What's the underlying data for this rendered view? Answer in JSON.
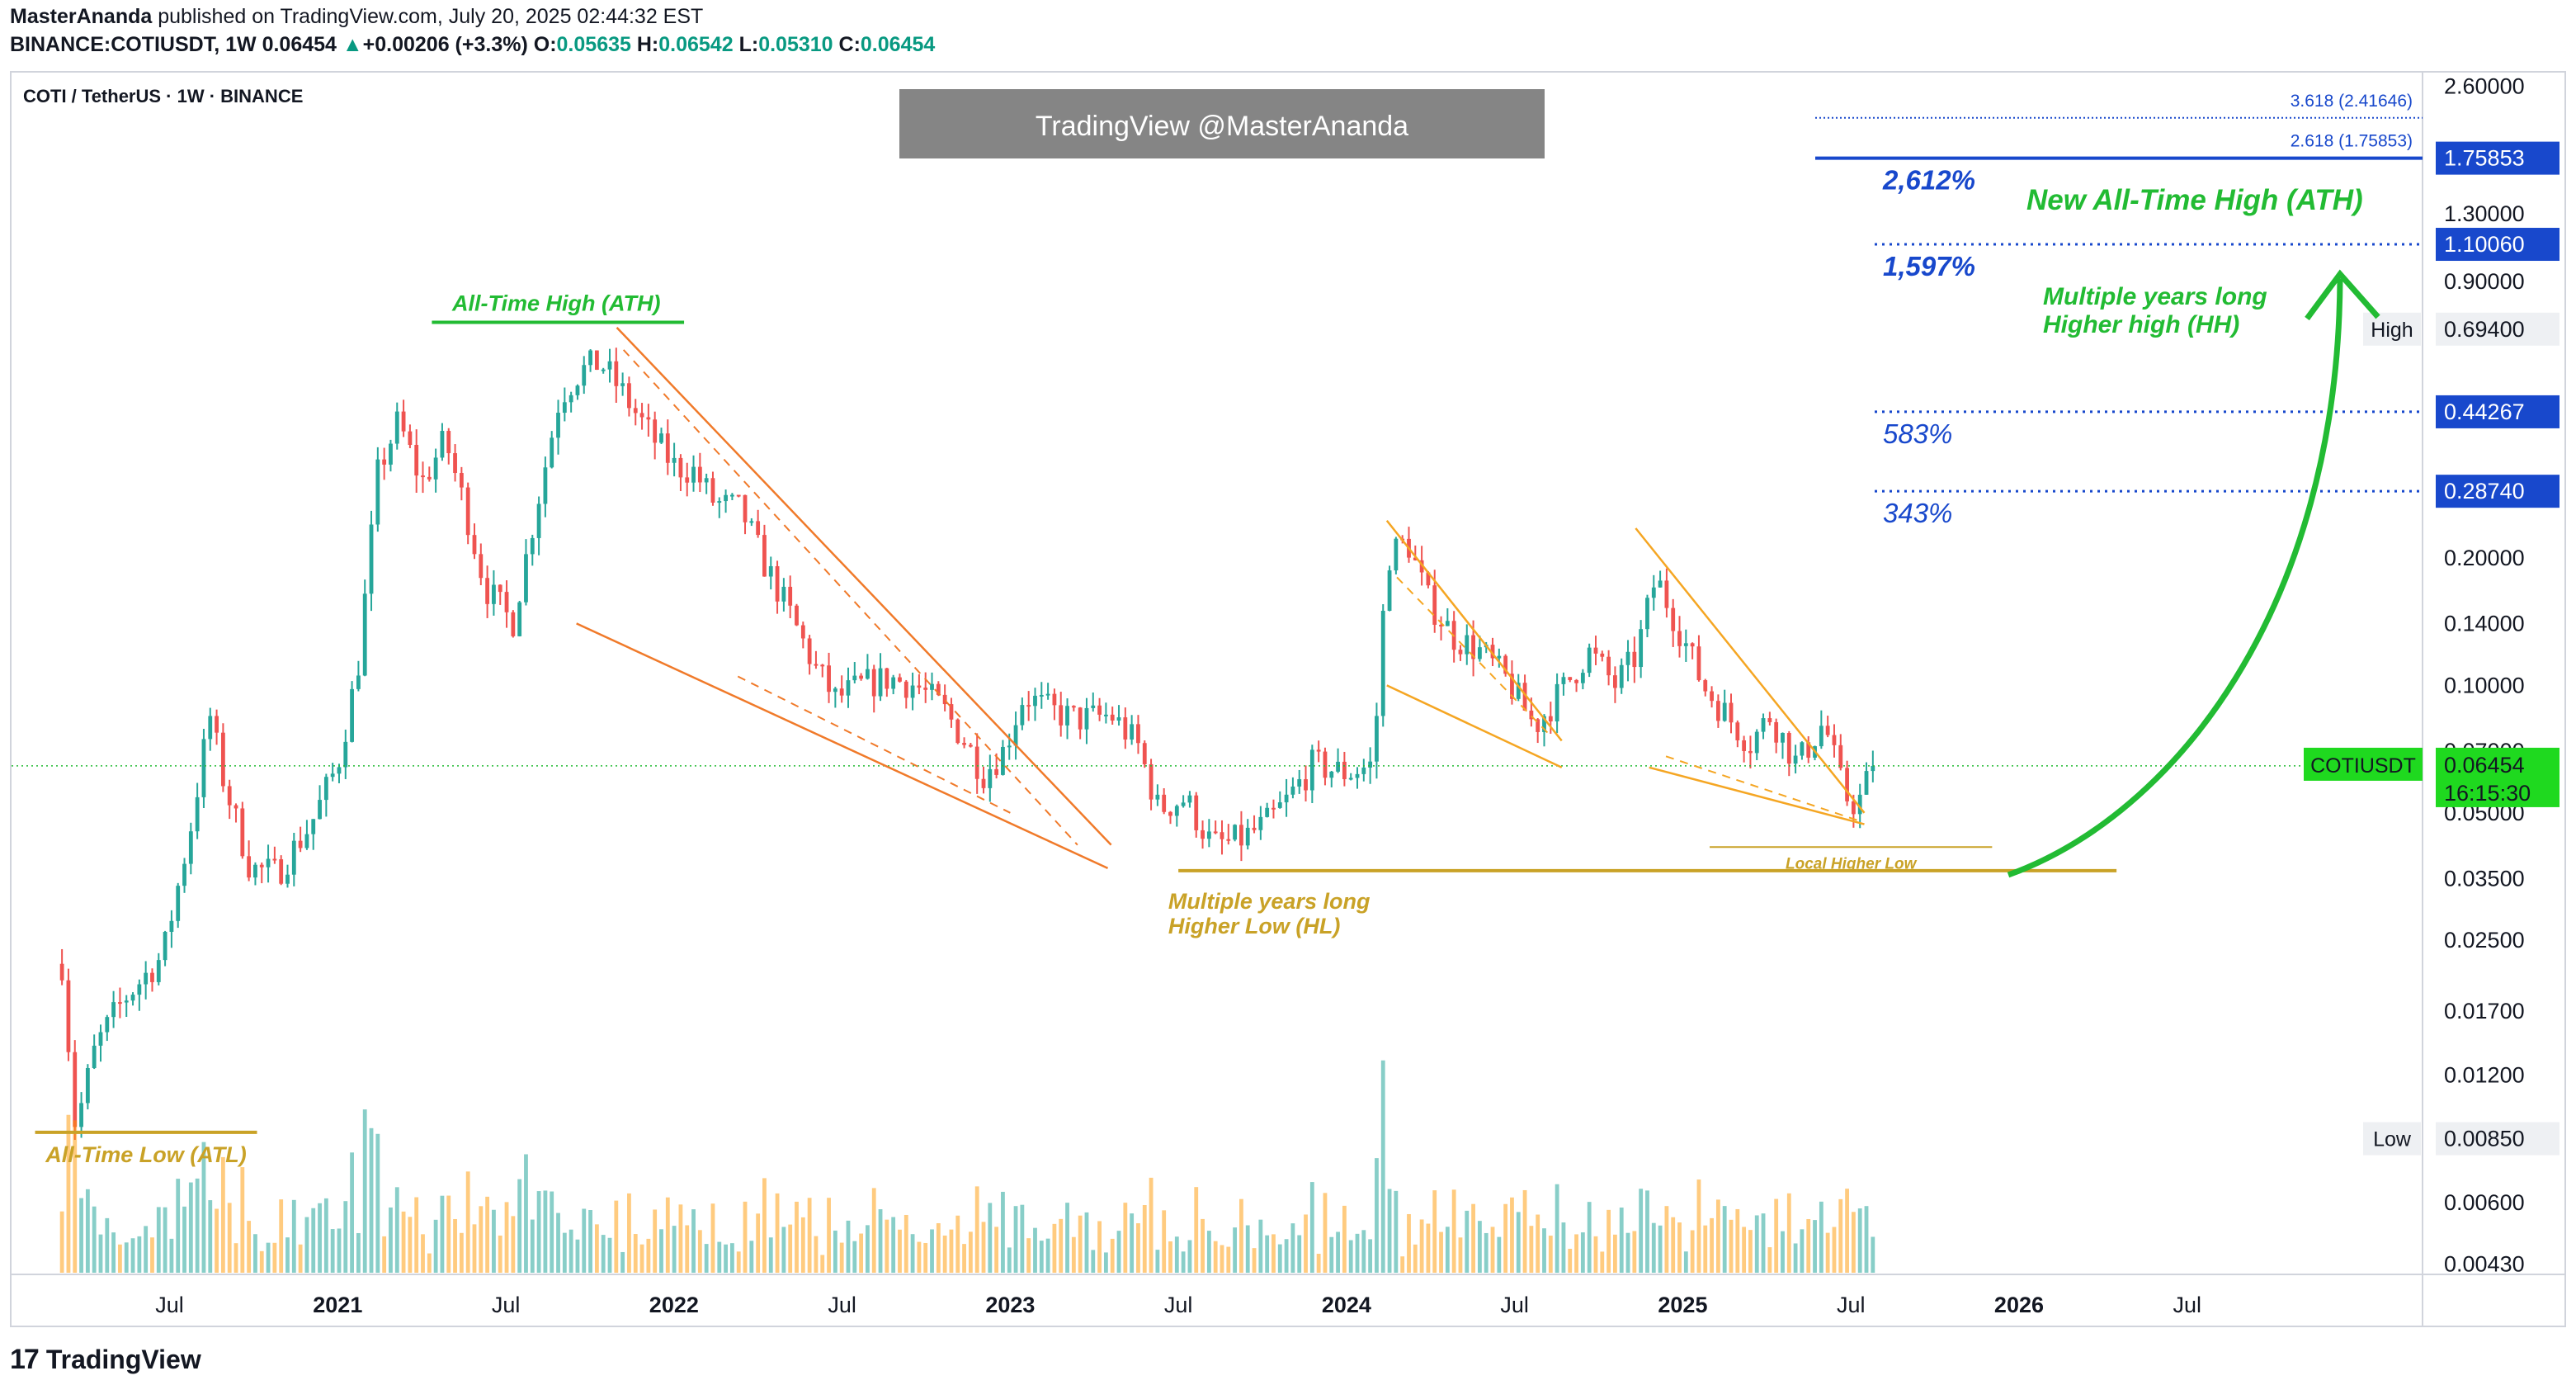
{
  "header": {
    "author": "MasterAnanda",
    "published_text": "published on TradingView.com, July 20, 2025 02:44:32 EST",
    "symbol_line": "BINANCE:COTIUSDT, 1W",
    "last": "0.06454",
    "change_arrow": "▲",
    "change": "+0.00206 (+3.3%)",
    "o_label": "O:",
    "o_value": "0.05635",
    "h_label": "H:",
    "h_value": "0.06542",
    "l_label": "L:",
    "l_value": "0.05310",
    "c_label": "C:",
    "c_value": "0.06454"
  },
  "footer": {
    "logo_glyph": "17",
    "brand": "TradingView"
  },
  "chart_data": {
    "type": "candlestick",
    "title": "COTI / TetherUS · 1W · BINANCE",
    "watermark": "TradingView @MasterAnanda",
    "scale": "log",
    "ylim": [
      0.0041,
      2.75
    ],
    "xlim": [
      2020.03,
      2027.2
    ],
    "y_ticks": [
      "2.60000",
      "1.30000",
      "0.90000",
      "0.20000",
      "0.14000",
      "0.10000",
      "0.07000",
      "0.05000",
      "0.03500",
      "0.02500",
      "0.01700",
      "0.01200",
      "0.00600",
      "0.00430"
    ],
    "y_tick_values": [
      2.6,
      1.3,
      0.9,
      0.2,
      0.14,
      0.1,
      0.07,
      0.05,
      0.035,
      0.025,
      0.017,
      0.012,
      0.006,
      0.0043
    ],
    "x_ticks": [
      {
        "label": "Jul",
        "t": 2020.5,
        "bold": false
      },
      {
        "label": "2021",
        "t": 2021.0,
        "bold": true
      },
      {
        "label": "Jul",
        "t": 2021.5,
        "bold": false
      },
      {
        "label": "2022",
        "t": 2022.0,
        "bold": true
      },
      {
        "label": "Jul",
        "t": 2022.5,
        "bold": false
      },
      {
        "label": "2023",
        "t": 2023.0,
        "bold": true
      },
      {
        "label": "Jul",
        "t": 2023.5,
        "bold": false
      },
      {
        "label": "2024",
        "t": 2024.0,
        "bold": true
      },
      {
        "label": "Jul",
        "t": 2024.5,
        "bold": false
      },
      {
        "label": "2025",
        "t": 2025.0,
        "bold": true
      },
      {
        "label": "Jul",
        "t": 2025.5,
        "bold": false
      },
      {
        "label": "2026",
        "t": 2026.0,
        "bold": true
      },
      {
        "label": "Jul",
        "t": 2026.5,
        "bold": false
      }
    ],
    "price_path": [
      [
        2020.18,
        0.022
      ],
      [
        2020.22,
        0.009
      ],
      [
        2020.28,
        0.014
      ],
      [
        2020.36,
        0.018
      ],
      [
        2020.48,
        0.023
      ],
      [
        2020.56,
        0.045
      ],
      [
        2020.62,
        0.085
      ],
      [
        2020.66,
        0.06
      ],
      [
        2020.74,
        0.037
      ],
      [
        2020.82,
        0.036
      ],
      [
        2020.92,
        0.047
      ],
      [
        2021.0,
        0.065
      ],
      [
        2021.06,
        0.11
      ],
      [
        2021.12,
        0.32
      ],
      [
        2021.18,
        0.42
      ],
      [
        2021.25,
        0.3
      ],
      [
        2021.32,
        0.38
      ],
      [
        2021.38,
        0.26
      ],
      [
        2021.44,
        0.17
      ],
      [
        2021.52,
        0.14
      ],
      [
        2021.58,
        0.24
      ],
      [
        2021.66,
        0.48
      ],
      [
        2021.72,
        0.55
      ],
      [
        2021.78,
        0.58
      ],
      [
        2021.84,
        0.5
      ],
      [
        2021.92,
        0.4
      ],
      [
        2022.0,
        0.33
      ],
      [
        2022.06,
        0.32
      ],
      [
        2022.12,
        0.27
      ],
      [
        2022.2,
        0.26
      ],
      [
        2022.26,
        0.2
      ],
      [
        2022.34,
        0.15
      ],
      [
        2022.42,
        0.11
      ],
      [
        2022.48,
        0.093
      ],
      [
        2022.56,
        0.1
      ],
      [
        2022.64,
        0.104
      ],
      [
        2022.72,
        0.1
      ],
      [
        2022.8,
        0.088
      ],
      [
        2022.86,
        0.075
      ],
      [
        2022.92,
        0.062
      ],
      [
        2022.98,
        0.07
      ],
      [
        2023.04,
        0.095
      ],
      [
        2023.12,
        0.087
      ],
      [
        2023.2,
        0.083
      ],
      [
        2023.3,
        0.085
      ],
      [
        2023.38,
        0.072
      ],
      [
        2023.44,
        0.051
      ],
      [
        2023.52,
        0.054
      ],
      [
        2023.6,
        0.042
      ],
      [
        2023.68,
        0.043
      ],
      [
        2023.76,
        0.047
      ],
      [
        2023.82,
        0.053
      ],
      [
        2023.9,
        0.065
      ],
      [
        2024.0,
        0.062
      ],
      [
        2024.08,
        0.065
      ],
      [
        2024.12,
        0.2
      ],
      [
        2024.18,
        0.22
      ],
      [
        2024.24,
        0.16
      ],
      [
        2024.32,
        0.13
      ],
      [
        2024.4,
        0.12
      ],
      [
        2024.48,
        0.102
      ],
      [
        2024.56,
        0.08
      ],
      [
        2024.64,
        0.097
      ],
      [
        2024.72,
        0.12
      ],
      [
        2024.8,
        0.1
      ],
      [
        2024.86,
        0.117
      ],
      [
        2024.92,
        0.18
      ],
      [
        2025.0,
        0.13
      ],
      [
        2025.06,
        0.1
      ],
      [
        2025.12,
        0.087
      ],
      [
        2025.2,
        0.073
      ],
      [
        2025.26,
        0.085
      ],
      [
        2025.34,
        0.065
      ],
      [
        2025.42,
        0.082
      ],
      [
        2025.48,
        0.055
      ],
      [
        2025.52,
        0.052
      ],
      [
        2025.55,
        0.06
      ],
      [
        2025.58,
        0.0645
      ]
    ],
    "last_price": 0.06454,
    "price_labels": [
      {
        "text": "1.75853",
        "value": 1.75853,
        "style": "blue"
      },
      {
        "text": "1.10060",
        "value": 1.1006,
        "style": "blue"
      },
      {
        "text": "0.69400",
        "value": 0.694,
        "style": "grey",
        "tag": "High"
      },
      {
        "text": "0.44267",
        "value": 0.44267,
        "style": "blue"
      },
      {
        "text": "0.28740",
        "value": 0.2874,
        "style": "blue"
      },
      {
        "text": "0.00850",
        "value": 0.0085,
        "style": "grey",
        "tag": "Low"
      }
    ],
    "current_label": {
      "symbol": "COTIUSDT",
      "price": "0.06454",
      "countdown": "16:15:30"
    },
    "targets": [
      {
        "value": 1.75853,
        "pct": "2,612%",
        "fib": "2.618 (1.75853)"
      },
      {
        "value": 1.1006,
        "pct": "1,597%"
      },
      {
        "value": 0.44267,
        "pct": "583%"
      },
      {
        "value": 0.2874,
        "pct": "343%"
      }
    ],
    "fib_extra": {
      "value": 2.41646,
      "text": "3.618 (2.41646)"
    },
    "annotations": {
      "ath": "All-Time High (ATH)",
      "atl": "All-Time Low (ATL)",
      "hl1": "Multiple years long",
      "hl2": "Higher Low (HL)",
      "lhl": "Local Higher Low",
      "new_ath": "New All-Time High (ATH)",
      "hh1": "Multiple years long",
      "hh2": "Higher high (HH)"
    },
    "colors": {
      "up": "#26a69a",
      "down": "#ef5350",
      "blue": "#1848cc",
      "green": "#22bb33",
      "gold": "#c9a227",
      "orange": "#f07a2a"
    }
  }
}
